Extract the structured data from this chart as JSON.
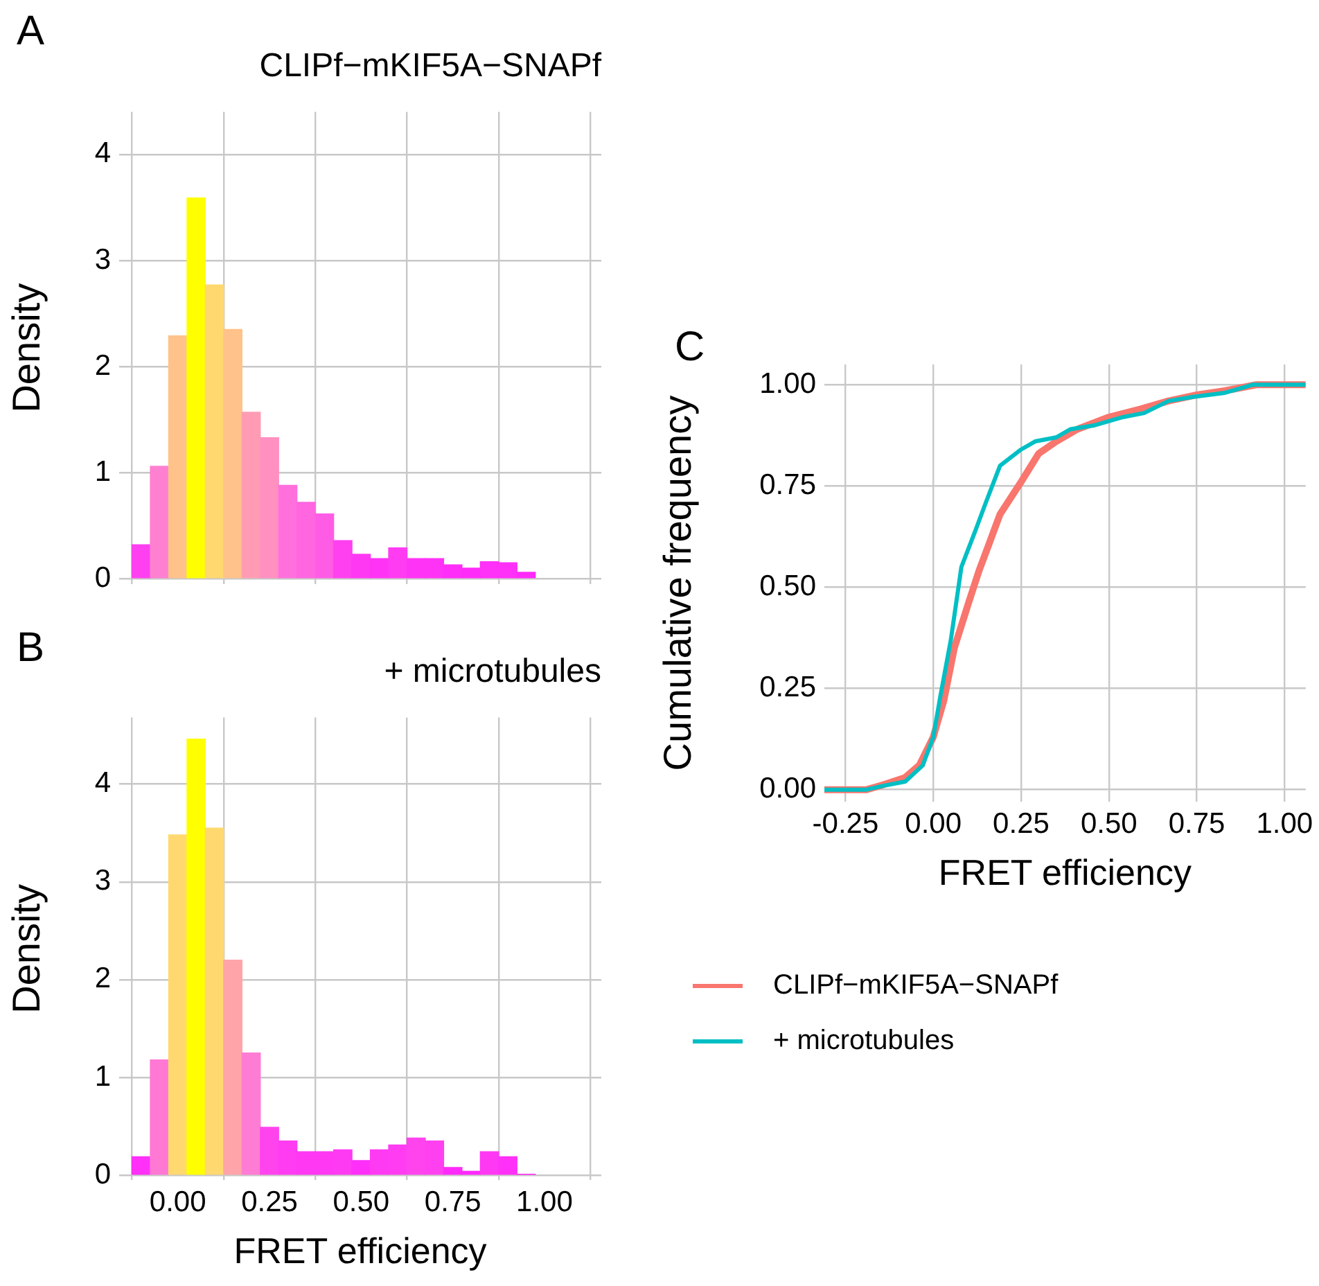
{
  "chart_data": [
    {
      "type": "histogram",
      "title": "CLIPf−mKIF5A−SNAPf",
      "ylabel": "Density",
      "annotations": [
        "A"
      ],
      "bins": [
        -0.125,
        -0.075,
        -0.025,
        0.025,
        0.075,
        0.125,
        0.175,
        0.225,
        0.275,
        0.325,
        0.375,
        0.425,
        0.475,
        0.525,
        0.575,
        0.625,
        0.675,
        0.725,
        0.775,
        0.825,
        0.875,
        0.925,
        0.975
      ],
      "values": [
        0.32,
        1.06,
        2.29,
        3.59,
        2.77,
        2.35,
        1.57,
        1.33,
        0.88,
        0.72,
        0.61,
        0.36,
        0.23,
        0.19,
        0.29,
        0.19,
        0.19,
        0.13,
        0.1,
        0.16,
        0.15,
        0.06
      ],
      "colors": [
        "#ff40f0",
        "#ff80d0",
        "#ffc28a",
        "#ffff00",
        "#ffd870",
        "#ffc28a",
        "#ff9cb4",
        "#ff90c0",
        "#ff70dc",
        "#ff66e0",
        "#ff5ce6",
        "#ff40f0",
        "#ff38f4",
        "#ff33f6",
        "#ff3cf2",
        "#ff33f6",
        "#ff33f6",
        "#ff2ef8",
        "#ff2cf9",
        "#ff30f7",
        "#ff30f7",
        "#ff2afa"
      ],
      "xlim": [
        -0.16,
        1.155
      ],
      "ylim": [
        -0.05,
        4.4
      ],
      "xticks": [
        {
          "value": 0,
          "label": null
        },
        {
          "value": 0.25,
          "label": null
        },
        {
          "value": 0.5,
          "label": null
        },
        {
          "value": 0.75,
          "label": null
        },
        {
          "value": 1,
          "label": null
        }
      ],
      "yticks": [
        0,
        1,
        2,
        3,
        4
      ],
      "grid": true,
      "tick_labels": "y"
    },
    {
      "type": "histogram",
      "title": "+ microtubules",
      "xlabel": "FRET efficiency",
      "ylabel": "Density",
      "annotations": [
        "B"
      ],
      "bins": [
        -0.125,
        -0.075,
        -0.025,
        0.025,
        0.075,
        0.125,
        0.175,
        0.225,
        0.275,
        0.325,
        0.375,
        0.425,
        0.475,
        0.525,
        0.575,
        0.625,
        0.675,
        0.725,
        0.775,
        0.825,
        0.875,
        0.925,
        0.975
      ],
      "values": [
        0.19,
        1.18,
        3.48,
        4.46,
        3.55,
        2.2,
        1.25,
        0.49,
        0.35,
        0.24,
        0.24,
        0.26,
        0.15,
        0.26,
        0.31,
        0.38,
        0.35,
        0.08,
        0.04,
        0.24,
        0.19,
        0.01
      ],
      "colors": [
        "#ff30f7",
        "#ff78d4",
        "#ffd870",
        "#ffff00",
        "#ffd870",
        "#ffa4a8",
        "#ff7cd4",
        "#ff44ee",
        "#ff3cf2",
        "#ff38f4",
        "#ff38f4",
        "#ff3af3",
        "#ff2ef8",
        "#ff3af3",
        "#ff3cf2",
        "#ff44ee",
        "#ff40f0",
        "#ff2afa",
        "#ff28fb",
        "#ff38f4",
        "#ff30f7",
        "#ff26fc"
      ],
      "xlim": [
        -0.16,
        1.155
      ],
      "ylim": [
        -0.05,
        4.68
      ],
      "xticks": [
        {
          "value": 0,
          "label": "0.00"
        },
        {
          "value": 0.25,
          "label": "0.25"
        },
        {
          "value": 0.5,
          "label": "0.50"
        },
        {
          "value": 0.75,
          "label": "0.75"
        },
        {
          "value": 1,
          "label": "1.00"
        }
      ],
      "yticks": [
        0,
        1,
        2,
        3,
        4
      ],
      "grid": true
    },
    {
      "type": "line",
      "xlabel": "FRET efficiency",
      "ylabel": "Cumulative frequency",
      "annotations": [
        "C"
      ],
      "marker": "none",
      "legend": "bottom",
      "series": [
        {
          "name": "CLIPf−mKIF5A−SNAPf",
          "color": "#f8766d",
          "x": [
            -0.31,
            -0.19,
            -0.15,
            -0.08,
            -0.04,
            0.0,
            0.03,
            0.06,
            0.1,
            0.13,
            0.16,
            0.19,
            0.25,
            0.3,
            0.35,
            0.41,
            0.5,
            0.59,
            0.67,
            0.75,
            0.83,
            0.92,
            1.06
          ],
          "values": [
            0,
            0,
            0.01,
            0.03,
            0.06,
            0.13,
            0.22,
            0.35,
            0.46,
            0.54,
            0.61,
            0.68,
            0.76,
            0.83,
            0.86,
            0.89,
            0.92,
            0.94,
            0.96,
            0.975,
            0.985,
            1,
            1
          ]
        },
        {
          "name": "+ microtubules",
          "color": "#00bfc4",
          "x": [
            -0.31,
            -0.19,
            -0.14,
            -0.08,
            -0.03,
            0.0,
            0.02,
            0.05,
            0.08,
            0.12,
            0.15,
            0.19,
            0.25,
            0.29,
            0.35,
            0.39,
            0.46,
            0.54,
            0.6,
            0.67,
            0.74,
            0.83,
            0.91,
            1.06
          ],
          "values": [
            0,
            0,
            0.01,
            0.02,
            0.06,
            0.13,
            0.23,
            0.37,
            0.55,
            0.64,
            0.71,
            0.8,
            0.84,
            0.86,
            0.87,
            0.89,
            0.9,
            0.92,
            0.93,
            0.96,
            0.97,
            0.98,
            1,
            1
          ]
        }
      ],
      "xlim": [
        -0.31,
        1.06
      ],
      "ylim": [
        -0.03,
        1.05
      ],
      "xticks": [
        {
          "value": -0.25,
          "label": "-0.25"
        },
        {
          "value": 0,
          "label": "0.00"
        },
        {
          "value": 0.25,
          "label": "0.25"
        },
        {
          "value": 0.5,
          "label": "0.50"
        },
        {
          "value": 0.75,
          "label": "0.75"
        },
        {
          "value": 1,
          "label": "1.00"
        }
      ],
      "yticks": [
        {
          "value": 0,
          "label": "0.00"
        },
        {
          "value": 0.25,
          "label": "0.25"
        },
        {
          "value": 0.5,
          "label": "0.50"
        },
        {
          "value": 0.75,
          "label": "0.75"
        },
        {
          "value": 1,
          "label": "1.00"
        }
      ],
      "grid": true
    }
  ]
}
